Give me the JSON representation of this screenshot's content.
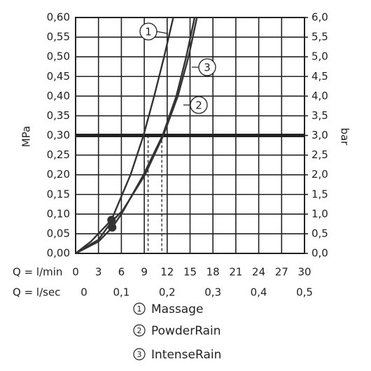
{
  "chart_data": {
    "type": "line",
    "x_axis_label": "Q = l/min",
    "x2_axis_label": "Q = l/sec",
    "y_axis_label": "MPa",
    "y2_axis_label": "bar",
    "xlim": [
      0,
      30
    ],
    "xticks": [
      0,
      3,
      6,
      9,
      12,
      15,
      18,
      21,
      24,
      27,
      30
    ],
    "x2lim": [
      0,
      0.5
    ],
    "x2ticks": [
      0,
      {
        "value": 0.1,
        "label": "0,1"
      },
      {
        "value": 0.2,
        "label": "0,2"
      },
      {
        "value": 0.3,
        "label": "0,3"
      },
      {
        "value": 0.4,
        "label": "0,4"
      },
      {
        "value": 0.5,
        "label": "0,5"
      }
    ],
    "ylim": [
      0,
      0.6
    ],
    "yticks": [
      {
        "value": 0,
        "label": "0,00"
      },
      {
        "value": 0.05,
        "label": "0,05"
      },
      {
        "value": 0.1,
        "label": "0,10"
      },
      {
        "value": 0.15,
        "label": "0,15"
      },
      {
        "value": 0.2,
        "label": "0,20"
      },
      {
        "value": 0.25,
        "label": "0,25"
      },
      {
        "value": 0.3,
        "label": "0,30"
      },
      {
        "value": 0.35,
        "label": "0,35"
      },
      {
        "value": 0.4,
        "label": "0,40"
      },
      {
        "value": 0.45,
        "label": "0,45"
      },
      {
        "value": 0.5,
        "label": "0,50"
      },
      {
        "value": 0.55,
        "label": "0,55"
      },
      {
        "value": 0.6,
        "label": "0,60"
      }
    ],
    "y2lim": [
      0,
      6
    ],
    "y2ticks": [
      {
        "value": 0,
        "label": "0,0"
      },
      {
        "value": 0.5,
        "label": "0,5"
      },
      {
        "value": 1,
        "label": "1,0"
      },
      {
        "value": 1.5,
        "label": "1,5"
      },
      {
        "value": 2,
        "label": "2,0"
      },
      {
        "value": 2.5,
        "label": "2,5"
      },
      {
        "value": 3,
        "label": "3,0"
      },
      {
        "value": 3.5,
        "label": "3,5"
      },
      {
        "value": 4,
        "label": "4,0"
      },
      {
        "value": 4.5,
        "label": "4,5"
      },
      {
        "value": 5,
        "label": "5,0"
      },
      {
        "value": 5.5,
        "label": "5,5"
      },
      {
        "value": 6,
        "label": "6,0"
      }
    ],
    "grid": true,
    "reference_line": 0.3,
    "dashed_x": [
      9.5,
      11.3
    ],
    "markers": {
      "x": [
        4.7,
        4.8
      ],
      "y": [
        0.085,
        0.066
      ]
    },
    "series": [
      {
        "name": "Massage",
        "callout": "1",
        "color": "#333333",
        "x": [
          0,
          2,
          4.7,
          7.2,
          8.9,
          10.3,
          11.6,
          12.8
        ],
        "values": [
          0,
          0.03,
          0.085,
          0.2,
          0.3,
          0.4,
          0.5,
          0.6
        ]
      },
      {
        "name": "PowderRain",
        "callout": "2",
        "color": "#333333",
        "x": [
          0,
          3,
          4.8,
          6,
          8.9,
          11.4,
          13.2,
          14.5,
          15.6
        ],
        "values": [
          0,
          0.03,
          0.066,
          0.1,
          0.2,
          0.3,
          0.4,
          0.5,
          0.6
        ]
      },
      {
        "name": "IntenseRain",
        "callout": "3",
        "color": "#333333",
        "x": [
          0,
          3,
          4.7,
          6.2,
          9.1,
          11.5,
          13.4,
          14.8,
          15.9
        ],
        "values": [
          0,
          0.035,
          0.08,
          0.11,
          0.2,
          0.3,
          0.4,
          0.5,
          0.6
        ]
      }
    ]
  }
}
